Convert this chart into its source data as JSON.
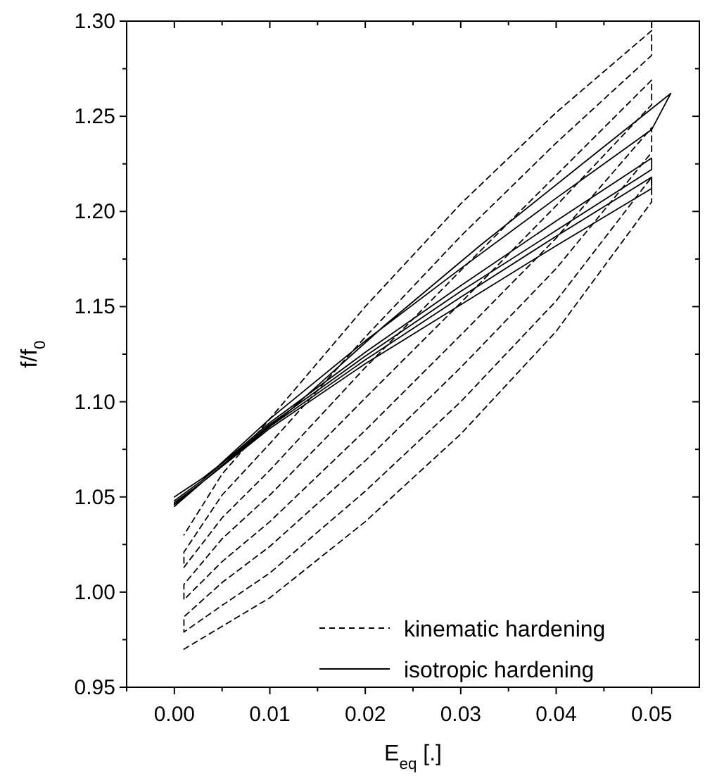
{
  "chart_data": {
    "type": "line",
    "xlabel": "E$_{eq}$ [.]",
    "ylabel": "f/f$_{0}$",
    "xlim": [
      -0.005,
      0.055
    ],
    "ylim": [
      0.95,
      1.3
    ],
    "xticks": [
      {
        "value": -0.005,
        "label": null
      },
      {
        "value": 0,
        "label": "0.00"
      },
      {
        "value": 0.005,
        "label": null
      },
      {
        "value": 0.01,
        "label": "0.01"
      },
      {
        "value": 0.015,
        "label": null
      },
      {
        "value": 0.02,
        "label": "0.02"
      },
      {
        "value": 0.025,
        "label": null
      },
      {
        "value": 0.03,
        "label": "0.03"
      },
      {
        "value": 0.035,
        "label": null
      },
      {
        "value": 0.04,
        "label": "0.04"
      },
      {
        "value": 0.045,
        "label": null
      },
      {
        "value": 0.05,
        "label": "0.05"
      }
    ],
    "yticks": [
      {
        "value": 0.95,
        "label": "0.95"
      },
      {
        "value": 0.975,
        "label": null
      },
      {
        "value": 1.0,
        "label": "1.00"
      },
      {
        "value": 1.025,
        "label": null
      },
      {
        "value": 1.05,
        "label": "1.05"
      },
      {
        "value": 1.075,
        "label": null
      },
      {
        "value": 1.1,
        "label": "1.10"
      },
      {
        "value": 1.125,
        "label": null
      },
      {
        "value": 1.15,
        "label": "1.15"
      },
      {
        "value": 1.175,
        "label": null
      },
      {
        "value": 1.2,
        "label": "1.20"
      },
      {
        "value": 1.225,
        "label": null
      },
      {
        "value": 1.25,
        "label": "1.25"
      },
      {
        "value": 1.275,
        "label": null
      },
      {
        "value": 1.3,
        "label": "1.30"
      }
    ],
    "legend": "bottom right",
    "grid": false,
    "marker": "none",
    "series": [
      {
        "name": "kinematic hardening",
        "color": "#000000",
        "line_style": "dashed",
        "x": [
          0.001,
          0.005,
          0.01,
          0.02,
          0.03,
          0.04,
          0.05,
          0.05,
          0.04,
          0.03,
          0.02,
          0.01,
          0.005,
          0.001,
          0.001,
          0.005,
          0.01,
          0.02,
          0.03,
          0.04,
          0.05,
          0.05,
          0.04,
          0.03,
          0.02,
          0.01,
          0.005,
          0.001,
          0.001,
          0.005,
          0.01,
          0.02,
          0.03,
          0.04,
          0.05,
          0.05,
          0.04,
          0.03,
          0.02,
          0.01,
          0.005,
          0.001,
          0.001,
          0.005,
          0.01,
          0.02,
          0.03,
          0.04,
          0.05,
          0.05,
          0.04,
          0.03,
          0.02,
          0.01,
          0.005,
          0.001
        ],
        "values": [
          0.97,
          0.982,
          0.997,
          1.037,
          1.083,
          1.137,
          1.205,
          1.218,
          1.153,
          1.1,
          1.053,
          1.01,
          0.993,
          0.979,
          0.987,
          1.005,
          1.024,
          1.069,
          1.118,
          1.17,
          1.231,
          1.244,
          1.186,
          1.135,
          1.085,
          1.037,
          1.016,
          0.996,
          1.004,
          1.028,
          1.051,
          1.102,
          1.152,
          1.203,
          1.256,
          1.269,
          1.219,
          1.169,
          1.118,
          1.064,
          1.039,
          1.013,
          1.021,
          1.051,
          1.078,
          1.134,
          1.187,
          1.236,
          1.282,
          1.295,
          1.252,
          1.204,
          1.15,
          1.091,
          1.062,
          1.03
        ]
      },
      {
        "name": "isotropic hardening",
        "color": "#000000",
        "line_style": "solid",
        "x": [
          0,
          0.003,
          0.01,
          0.02,
          0.03,
          0.04,
          0.05,
          0.05,
          0.04,
          0.03,
          0.02,
          0.01,
          0.003,
          0,
          0,
          0.003,
          0.01,
          0.02,
          0.03,
          0.04,
          0.05,
          0.05,
          0.04,
          0.03,
          0.02,
          0.01,
          0.003,
          0,
          0,
          0.003,
          0.01,
          0.02,
          0.03,
          0.04,
          0.05,
          0.052,
          0.042,
          0.032,
          0.022,
          0.012,
          0.003,
          0
        ],
        "values": [
          1.045,
          1.058,
          1.086,
          1.12,
          1.151,
          1.182,
          1.212,
          1.218,
          1.187,
          1.155,
          1.122,
          1.087,
          1.058,
          1.046,
          1.047,
          1.058,
          1.088,
          1.124,
          1.158,
          1.19,
          1.222,
          1.228,
          1.195,
          1.161,
          1.126,
          1.089,
          1.059,
          1.048,
          1.048,
          1.059,
          1.091,
          1.132,
          1.17,
          1.207,
          1.243,
          1.262,
          1.222,
          1.182,
          1.14,
          1.095,
          1.06,
          1.05
        ]
      }
    ]
  }
}
